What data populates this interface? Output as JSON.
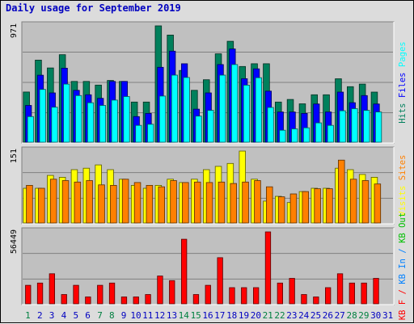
{
  "title": "Daily usage for September 2019",
  "colors": {
    "hits": "#00805c",
    "files": "#0000ff",
    "pages": "#00ffff",
    "visits": "#ffff00",
    "sites": "#ff8000",
    "kbin": "#0080ff",
    "kbout": "#00c000",
    "kbf": "#ff0000",
    "weekend": "#008040",
    "weekday": "#0000c0",
    "bg": "#c0c0c0"
  },
  "chart_data": [
    {
      "type": "bar",
      "panel": "top",
      "ymax_label": "971",
      "ylim": [
        0,
        971
      ],
      "categories": [
        "1",
        "2",
        "3",
        "4",
        "5",
        "6",
        "7",
        "8",
        "9",
        "10",
        "11",
        "12",
        "13",
        "14",
        "15",
        "16",
        "17",
        "18",
        "19",
        "20",
        "21",
        "22",
        "23",
        "24",
        "25",
        "26",
        "27",
        "28",
        "29",
        "30",
        "31"
      ],
      "weekend_days": [
        "1",
        "7",
        "8",
        "14",
        "15",
        "21",
        "22",
        "28",
        "29"
      ],
      "legend": [
        {
          "label": "Hits",
          "color": "hits"
        },
        {
          "label": "Files",
          "color": "files"
        },
        {
          "label": "Pages",
          "color": "pages"
        }
      ],
      "series": [
        {
          "name": "Hits",
          "values": [
            419,
            685,
            620,
            730,
            507,
            507,
            477,
            515,
            507,
            335,
            335,
            971,
            894,
            599,
            433,
            521,
            738,
            842,
            632,
            655,
            655,
            335,
            357,
            320,
            396,
            396,
            529,
            463,
            485,
            418,
            0
          ]
        },
        {
          "name": "Files",
          "values": [
            307,
            559,
            411,
            618,
            433,
            396,
            366,
            507,
            507,
            214,
            240,
            625,
            760,
            655,
            276,
            411,
            648,
            778,
            530,
            612,
            426,
            252,
            252,
            240,
            319,
            252,
            418,
            330,
            389,
            319,
            0
          ]
        },
        {
          "name": "Pages",
          "values": [
            214,
            440,
            292,
            485,
            389,
            329,
            307,
            351,
            381,
            140,
            150,
            385,
            560,
            540,
            218,
            266,
            560,
            648,
            476,
            538,
            290,
            100,
            111,
            120,
            161,
            140,
            262,
            280,
            266,
            252,
            0
          ]
        }
      ]
    },
    {
      "type": "bar",
      "panel": "middle",
      "ymax_label": "151",
      "ylim": [
        0,
        151
      ],
      "categories": [
        "1",
        "2",
        "3",
        "4",
        "5",
        "6",
        "7",
        "8",
        "9",
        "10",
        "11",
        "12",
        "13",
        "14",
        "15",
        "16",
        "17",
        "18",
        "19",
        "20",
        "21",
        "22",
        "23",
        "24",
        "25",
        "26",
        "27",
        "28",
        "29",
        "30",
        "31"
      ],
      "legend": [
        {
          "label": "Visits",
          "color": "visits"
        },
        {
          "label": "Sites",
          "color": "sites"
        }
      ],
      "series": [
        {
          "name": "Visits",
          "values": [
            73,
            73,
            100,
            96,
            112,
            115,
            122,
            112,
            92,
            79,
            73,
            79,
            92,
            85,
            92,
            112,
            119,
            125,
            151,
            92,
            46,
            56,
            43,
            66,
            73,
            73,
            115,
            112,
            102,
            96,
            0
          ]
        },
        {
          "name": "Sites",
          "values": [
            79,
            73,
            92,
            89,
            86,
            89,
            80,
            79,
            92,
            85,
            79,
            76,
            89,
            85,
            86,
            85,
            86,
            83,
            86,
            89,
            76,
            55,
            61,
            66,
            72,
            72,
            132,
            92,
            89,
            82,
            0
          ]
        }
      ]
    },
    {
      "type": "bar",
      "panel": "bottom",
      "ymax_label": "56449",
      "ylim": [
        0,
        56449
      ],
      "categories": [
        "1",
        "2",
        "3",
        "4",
        "5",
        "6",
        "7",
        "8",
        "9",
        "10",
        "11",
        "12",
        "13",
        "14",
        "15",
        "16",
        "17",
        "18",
        "19",
        "20",
        "21",
        "22",
        "23",
        "24",
        "25",
        "26",
        "27",
        "28",
        "29",
        "30",
        "31"
      ],
      "legend": [
        {
          "label": "KB F",
          "color": "kbf"
        },
        {
          "label": "/",
          "color": "kbf"
        },
        {
          "label": "KB In",
          "color": "kbin"
        },
        {
          "label": "/",
          "color": "kbin"
        },
        {
          "label": "KB Out",
          "color": "kbout"
        }
      ],
      "series": [
        {
          "name": "KB F",
          "values": [
            14500,
            16300,
            23600,
            7300,
            14500,
            5400,
            14500,
            16300,
            5400,
            5400,
            7300,
            21800,
            18200,
            50700,
            7300,
            14500,
            36200,
            12700,
            12700,
            12700,
            56449,
            16300,
            20000,
            7300,
            5400,
            12700,
            23600,
            16300,
            16300,
            20000,
            0
          ]
        }
      ]
    }
  ]
}
